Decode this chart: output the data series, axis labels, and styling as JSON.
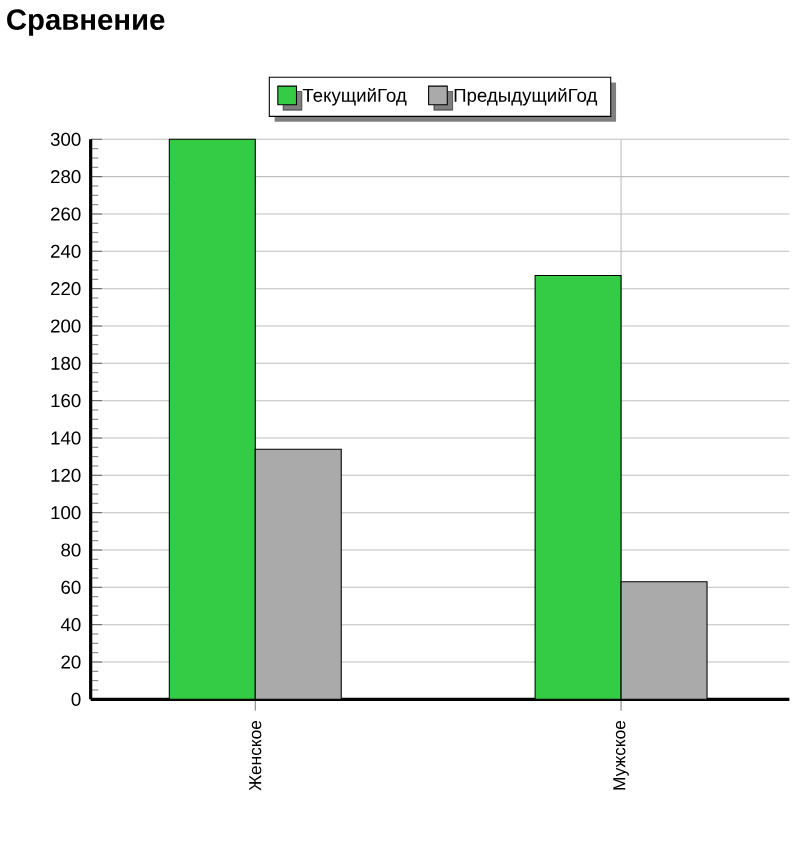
{
  "chart_data": {
    "type": "bar",
    "title": "Сравнение",
    "categories": [
      "Женское",
      "Мужское"
    ],
    "series": [
      {
        "name": "ТекущийГод",
        "color": "#33cc44",
        "values": [
          300,
          227
        ]
      },
      {
        "name": "ПредыдущийГод",
        "color": "#aaaaaa",
        "values": [
          134,
          63
        ]
      }
    ],
    "ylim": [
      0,
      300
    ],
    "yticks": [
      0,
      20,
      40,
      60,
      80,
      100,
      120,
      140,
      160,
      180,
      200,
      220,
      240,
      260,
      280,
      300
    ],
    "grid": true,
    "legend": "top"
  }
}
